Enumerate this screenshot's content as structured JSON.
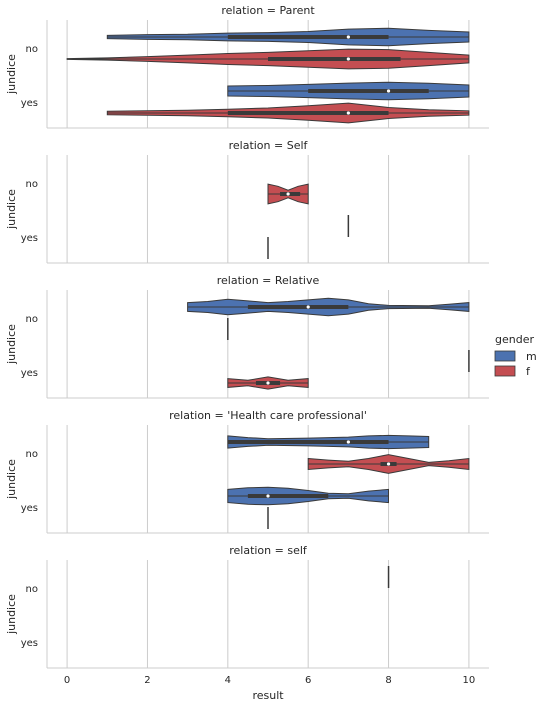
{
  "chart_data": {
    "type": "violin",
    "facet_titles": [
      "relation = Parent",
      "relation = Self",
      "relation = Relative",
      "relation = 'Health care professional'",
      "relation = self"
    ],
    "xlabel": "result",
    "ylabel": "jundice",
    "xlim": [
      -0.5,
      10.5
    ],
    "x_ticks": [
      0,
      2,
      4,
      6,
      8,
      10
    ],
    "y_categories": [
      "no",
      "yes"
    ],
    "grid": "vertical",
    "legend": {
      "title": "gender",
      "placement": "right",
      "entries": [
        {
          "label": "m",
          "color": "#4c72b0"
        },
        {
          "label": "f",
          "color": "#c44e52"
        }
      ]
    },
    "colors": {
      "m": "#4c72b0",
      "f": "#c44e52"
    },
    "panels": [
      {
        "relation": "Parent",
        "violins": [
          {
            "jundice": "no",
            "gender": "m",
            "min": 1,
            "q1": 4,
            "median": 7,
            "q3": 8,
            "max": 10,
            "profile": [
              [
                1,
                0.15
              ],
              [
                2,
                0.22
              ],
              [
                3,
                0.25
              ],
              [
                4,
                0.35
              ],
              [
                5,
                0.4
              ],
              [
                6,
                0.5
              ],
              [
                7,
                0.72
              ],
              [
                8,
                0.8
              ],
              [
                9,
                0.6
              ],
              [
                10,
                0.45
              ]
            ]
          },
          {
            "jundice": "no",
            "gender": "f",
            "min": 0,
            "q1": 5,
            "median": 7,
            "q3": 8.3,
            "max": 10,
            "profile": [
              [
                0,
                0.04
              ],
              [
                0.5,
                0.06
              ],
              [
                1,
                0.1
              ],
              [
                2,
                0.22
              ],
              [
                3,
                0.35
              ],
              [
                4,
                0.5
              ],
              [
                5,
                0.6
              ],
              [
                6,
                0.75
              ],
              [
                7,
                0.9
              ],
              [
                8,
                0.85
              ],
              [
                9,
                0.6
              ],
              [
                10,
                0.35
              ]
            ]
          },
          {
            "jundice": "yes",
            "gender": "m",
            "min": 4,
            "q1": 6,
            "median": 8,
            "q3": 9,
            "max": 10,
            "profile": [
              [
                4,
                0.45
              ],
              [
                5,
                0.5
              ],
              [
                6,
                0.6
              ],
              [
                7,
                0.72
              ],
              [
                8,
                0.8
              ],
              [
                9,
                0.7
              ],
              [
                10,
                0.55
              ]
            ]
          },
          {
            "jundice": "yes",
            "gender": "f",
            "min": 1,
            "q1": 4,
            "median": 7,
            "q3": 8,
            "max": 10,
            "profile": [
              [
                1,
                0.15
              ],
              [
                2,
                0.2
              ],
              [
                3,
                0.25
              ],
              [
                4,
                0.35
              ],
              [
                5,
                0.45
              ],
              [
                6,
                0.65
              ],
              [
                7,
                0.9
              ],
              [
                8,
                0.5
              ],
              [
                9,
                0.3
              ],
              [
                10,
                0.2
              ]
            ]
          }
        ]
      },
      {
        "relation": "Self",
        "violins": [
          {
            "jundice": "no",
            "gender": "f",
            "min": 5,
            "q1": 5.3,
            "median": 5.5,
            "q3": 5.8,
            "max": 6,
            "profile": [
              [
                5,
                0.9
              ],
              [
                5.25,
                0.7
              ],
              [
                5.5,
                0.35
              ],
              [
                5.75,
                0.7
              ],
              [
                6,
                0.9
              ]
            ]
          },
          {
            "jundice": "yes",
            "gender": "m",
            "min": 7,
            "q1": 7,
            "median": 7,
            "q3": 7,
            "max": 7,
            "profile": []
          },
          {
            "jundice": "yes",
            "gender": "f",
            "min": 5,
            "q1": 5,
            "median": 5,
            "q3": 5,
            "max": 5,
            "profile": []
          }
        ]
      },
      {
        "relation": "Relative",
        "violins": [
          {
            "jundice": "no",
            "gender": "m",
            "min": 3,
            "q1": 4.5,
            "median": 6,
            "q3": 7,
            "max": 10,
            "profile": [
              [
                3,
                0.4
              ],
              [
                3.5,
                0.5
              ],
              [
                4,
                0.7
              ],
              [
                4.5,
                0.55
              ],
              [
                5,
                0.4
              ],
              [
                5.5,
                0.5
              ],
              [
                6,
                0.65
              ],
              [
                6.5,
                0.8
              ],
              [
                7,
                0.65
              ],
              [
                7.5,
                0.3
              ],
              [
                8,
                0.15
              ],
              [
                9,
                0.12
              ],
              [
                9.5,
                0.25
              ],
              [
                10,
                0.4
              ]
            ]
          },
          {
            "jundice": "no",
            "gender": "f",
            "min": 4,
            "q1": 4,
            "median": 4,
            "q3": 4,
            "max": 4,
            "profile": []
          },
          {
            "jundice": "yes",
            "gender": "m",
            "min": 10,
            "q1": 10,
            "median": 10,
            "q3": 10,
            "max": 10,
            "profile": []
          },
          {
            "jundice": "yes",
            "gender": "f",
            "min": 4,
            "q1": 4.7,
            "median": 5,
            "q3": 5.3,
            "max": 6,
            "profile": [
              [
                4,
                0.4
              ],
              [
                4.5,
                0.25
              ],
              [
                5,
                0.55
              ],
              [
                5.5,
                0.25
              ],
              [
                6,
                0.4
              ]
            ]
          }
        ]
      },
      {
        "relation": "Health care professional",
        "violins": [
          {
            "jundice": "no",
            "gender": "m",
            "min": 4,
            "q1": 4,
            "median": 7,
            "q3": 8,
            "max": 9,
            "profile": [
              [
                4,
                0.55
              ],
              [
                4.5,
                0.4
              ],
              [
                5,
                0.3
              ],
              [
                6,
                0.35
              ],
              [
                7,
                0.45
              ],
              [
                7.5,
                0.55
              ],
              [
                8,
                0.6
              ],
              [
                8.5,
                0.55
              ],
              [
                9,
                0.5
              ]
            ]
          },
          {
            "jundice": "no",
            "gender": "f",
            "min": 6,
            "q1": 7.8,
            "median": 8,
            "q3": 8.2,
            "max": 10,
            "profile": [
              [
                6,
                0.5
              ],
              [
                6.5,
                0.35
              ],
              [
                7,
                0.25
              ],
              [
                7.5,
                0.5
              ],
              [
                8,
                0.85
              ],
              [
                8.5,
                0.5
              ],
              [
                9,
                0.15
              ],
              [
                9.5,
                0.3
              ],
              [
                10,
                0.5
              ]
            ]
          },
          {
            "jundice": "yes",
            "gender": "m",
            "min": 4,
            "q1": 4.5,
            "median": 5,
            "q3": 6.5,
            "max": 8,
            "profile": [
              [
                4,
                0.6
              ],
              [
                4.5,
                0.75
              ],
              [
                5,
                0.8
              ],
              [
                5.5,
                0.7
              ],
              [
                6,
                0.5
              ],
              [
                6.5,
                0.25
              ],
              [
                7,
                0.2
              ],
              [
                7.5,
                0.45
              ],
              [
                8,
                0.6
              ]
            ]
          },
          {
            "jundice": "yes",
            "gender": "f",
            "min": 5,
            "q1": 5,
            "median": 5,
            "q3": 5,
            "max": 5,
            "profile": []
          }
        ]
      },
      {
        "relation": "self",
        "violins": [
          {
            "jundice": "no",
            "gender": "m",
            "min": 8,
            "q1": 8,
            "median": 8,
            "q3": 8,
            "max": 8,
            "profile": []
          }
        ]
      }
    ]
  }
}
